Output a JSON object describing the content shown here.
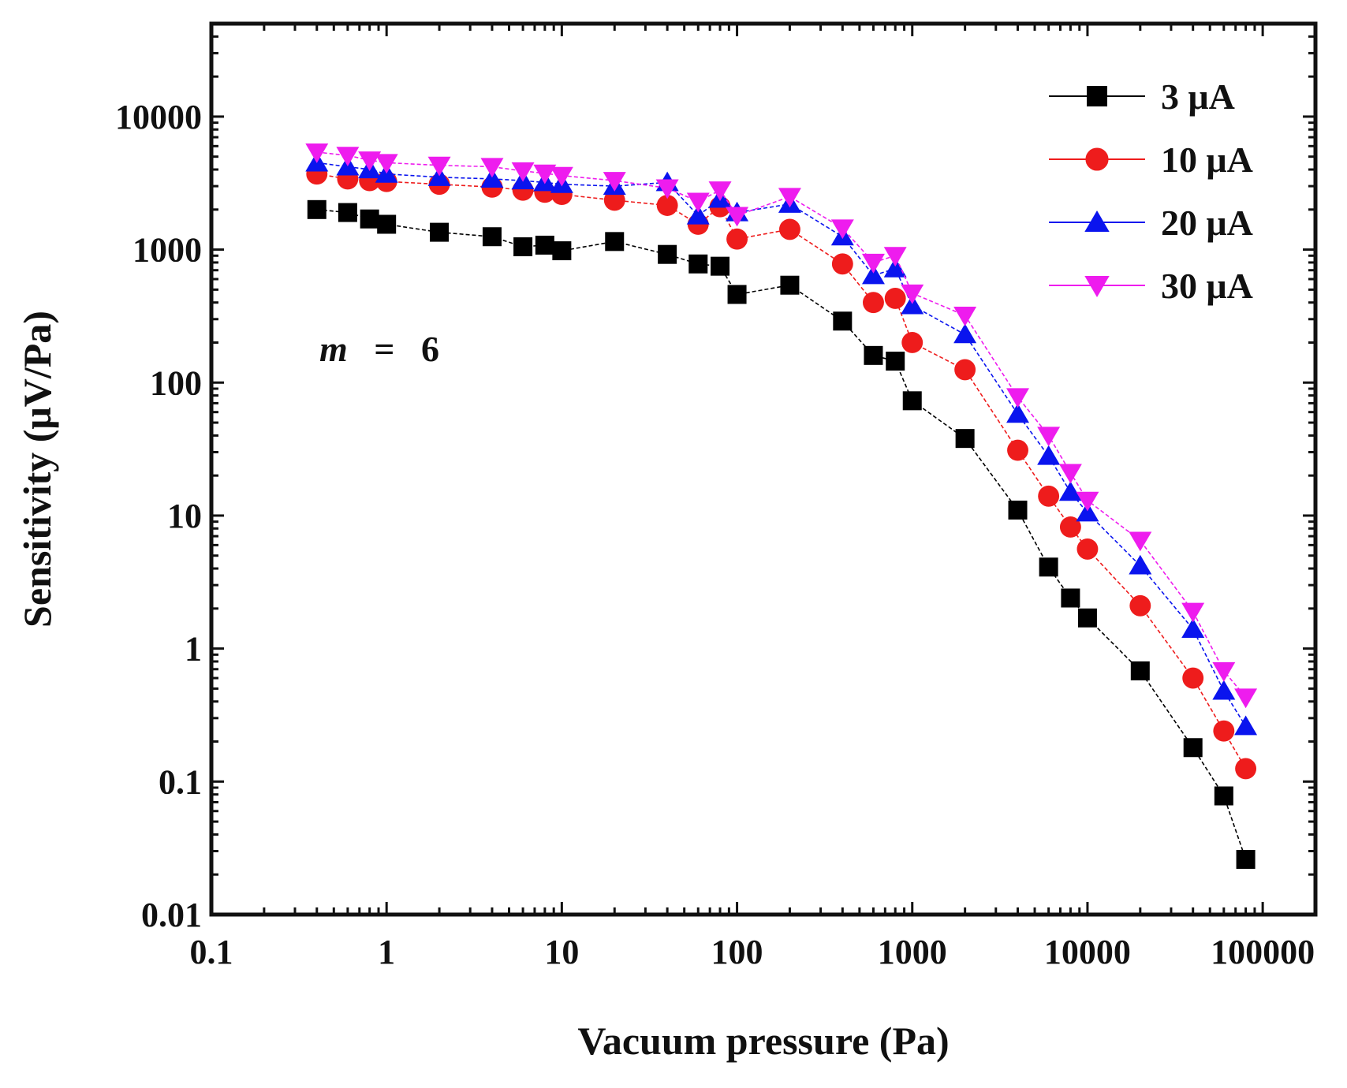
{
  "chart_data": {
    "type": "scatter",
    "title": "",
    "xlabel": "Vacuum pressure (Pa)",
    "ylabel": "Sensitivity (μV/Pa)",
    "xscale": "log",
    "yscale": "log",
    "xlim": [
      0.1,
      200000
    ],
    "ylim": [
      0.01,
      50000
    ],
    "x_ticks": [
      0.1,
      1,
      10,
      100,
      1000,
      10000,
      100000
    ],
    "x_tick_labels": [
      "0.1",
      "1",
      "10",
      "100",
      "1000",
      "10000",
      "100000"
    ],
    "y_ticks": [
      0.01,
      0.1,
      1,
      10,
      100,
      1000,
      10000
    ],
    "y_tick_labels": [
      "0.01",
      "0.1",
      "1",
      "10",
      "100",
      "1000",
      "10000"
    ],
    "legend_position": "top-right",
    "annotation": {
      "var": "m",
      "eq": "=",
      "value": "6"
    },
    "x": [
      0.4,
      0.6,
      0.8,
      1,
      2,
      4,
      6,
      8,
      10,
      20,
      40,
      60,
      80,
      100,
      200,
      400,
      600,
      800,
      1000,
      2000,
      4000,
      6000,
      8000,
      10000,
      20000,
      40000,
      60000,
      80000
    ],
    "series": [
      {
        "name": "3 μA",
        "color": "#000000",
        "marker": "square",
        "values": [
          2000,
          1900,
          1700,
          1550,
          1350,
          1250,
          1050,
          1080,
          980,
          1150,
          920,
          780,
          750,
          460,
          540,
          290,
          160,
          145,
          73,
          38,
          11,
          4.1,
          2.4,
          1.7,
          0.68,
          0.18,
          0.078,
          0.026
        ]
      },
      {
        "name": "10 μA",
        "color": "#ee1c1c",
        "marker": "circle",
        "values": [
          3700,
          3400,
          3300,
          3250,
          3100,
          2950,
          2800,
          2700,
          2600,
          2350,
          2150,
          1550,
          2100,
          1200,
          1420,
          780,
          400,
          430,
          200,
          125,
          31,
          14,
          8.2,
          5.6,
          2.1,
          0.6,
          0.24,
          0.125
        ]
      },
      {
        "name": "20 μA",
        "color": "#0a14ee",
        "marker": "triangle-up",
        "values": [
          4500,
          4200,
          4000,
          3700,
          3500,
          3400,
          3300,
          3200,
          3100,
          3000,
          3200,
          1800,
          2400,
          1900,
          2200,
          1250,
          640,
          720,
          380,
          230,
          58,
          28,
          15,
          10.5,
          4.2,
          1.4,
          0.48,
          0.26
        ]
      },
      {
        "name": "30 μA",
        "color": "#ee1cee",
        "marker": "triangle-down",
        "values": [
          5400,
          5100,
          4700,
          4500,
          4300,
          4200,
          3900,
          3750,
          3600,
          3300,
          2900,
          2300,
          2800,
          1800,
          2500,
          1450,
          800,
          900,
          470,
          320,
          78,
          40,
          21,
          13,
          6.5,
          1.9,
          0.68,
          0.43
        ]
      }
    ]
  }
}
